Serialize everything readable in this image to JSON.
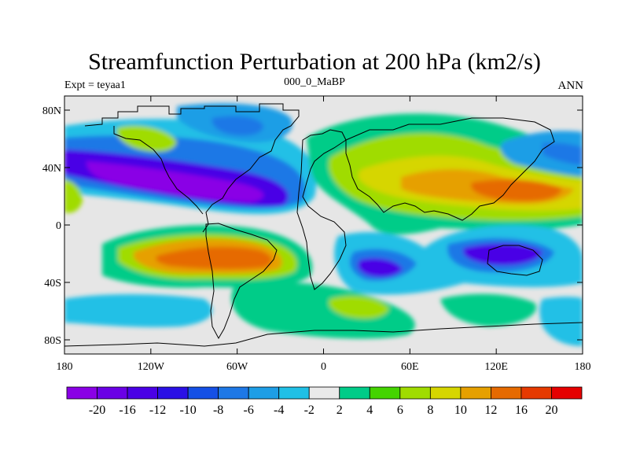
{
  "title": "Streamfunction Perturbation at 200 hPa (km2/s)",
  "left_label": "Expt = teyaa1",
  "center_label": "000_0_MaBP",
  "right_label": "ANN",
  "map": {
    "lat_ticks": [
      "80N",
      "40N",
      "0",
      "40S",
      "80S"
    ],
    "lon_ticks": [
      "180",
      "120W",
      "60W",
      "0",
      "60E",
      "120E",
      "180"
    ],
    "background_color": "#e6e6e6"
  },
  "colorbar": {
    "colors": [
      "#8a00e6",
      "#6a00e6",
      "#4a00e6",
      "#2a10e6",
      "#1550e6",
      "#1e78e6",
      "#1e9ee6",
      "#20c0e6",
      "#eaeaea",
      "#00cc88",
      "#44d400",
      "#a0dc00",
      "#d6d600",
      "#e6a000",
      "#e66a00",
      "#e63a00",
      "#e60000"
    ],
    "labels": [
      "-20",
      "-16",
      "-12",
      "-10",
      "-8",
      "-6",
      "-4",
      "-2",
      "2",
      "4",
      "6",
      "8",
      "10",
      "12",
      "16",
      "20"
    ]
  }
}
